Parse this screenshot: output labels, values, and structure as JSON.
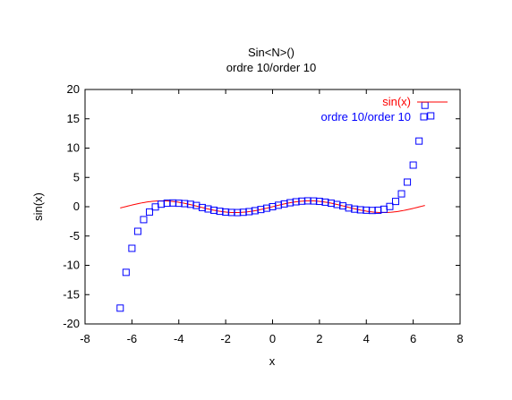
{
  "chart_data": {
    "type": "line",
    "title": "Sin<N>()",
    "subtitle": "ordre 10/order 10",
    "xlabel": "x",
    "ylabel": "sin(x)",
    "xlim": [
      -8,
      8
    ],
    "ylim": [
      -20,
      20
    ],
    "xticks": [
      -8,
      -6,
      -4,
      -2,
      0,
      2,
      4,
      6,
      8
    ],
    "yticks": [
      -20,
      -15,
      -10,
      -5,
      0,
      5,
      10,
      15,
      20
    ],
    "grid": false,
    "legend_position": "top-right",
    "series": [
      {
        "name": "sin(x)",
        "style": "line",
        "color": "#ff0000",
        "x_range": [
          -6.5,
          6.5
        ]
      },
      {
        "name": "ordre 10/order 10",
        "style": "open-square-markers",
        "color": "#0000ff",
        "x": [
          -6.5,
          -6.25,
          -6.0,
          -5.75,
          -5.5,
          -5.25,
          -5.0,
          -4.75,
          -4.5,
          -4.25,
          -4.0,
          -3.75,
          -3.5,
          -3.25,
          -3.0,
          -2.75,
          -2.5,
          -2.25,
          -2.0,
          -1.75,
          -1.5,
          -1.25,
          -1.0,
          -0.75,
          -0.5,
          -0.25,
          0.0,
          0.25,
          0.5,
          0.75,
          1.0,
          1.25,
          1.5,
          1.75,
          2.0,
          2.25,
          2.5,
          2.75,
          3.0,
          3.25,
          3.5,
          3.75,
          4.0,
          4.25,
          4.5,
          4.75,
          5.0,
          5.25,
          5.5,
          5.75,
          6.0,
          6.25,
          6.5,
          6.75
        ],
        "y": [
          -17.3,
          -11.2,
          -7.1,
          -4.2,
          -2.2,
          -0.9,
          -0.04,
          0.43,
          0.6,
          0.64,
          0.59,
          0.53,
          0.41,
          0.21,
          -0.14,
          -0.38,
          -0.6,
          -0.78,
          -0.91,
          -0.98,
          -1.0,
          -0.95,
          -0.84,
          -0.68,
          -0.48,
          -0.25,
          0.0,
          0.25,
          0.48,
          0.68,
          0.84,
          0.95,
          1.0,
          0.98,
          0.91,
          0.78,
          0.6,
          0.38,
          0.14,
          -0.21,
          -0.41,
          -0.53,
          -0.59,
          -0.64,
          -0.6,
          -0.43,
          0.04,
          0.9,
          2.2,
          4.2,
          7.1,
          11.2,
          17.3,
          15.5
        ]
      }
    ]
  }
}
